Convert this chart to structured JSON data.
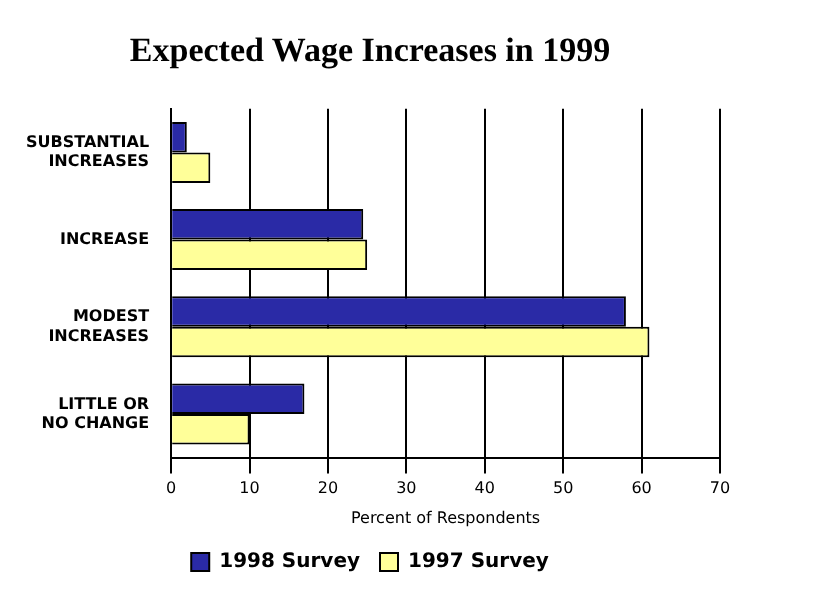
{
  "chart_data": {
    "type": "bar",
    "orientation": "horizontal",
    "title": "Expected Wage Increases in 1999",
    "xlabel": "Percent of Respondents",
    "categories": [
      "SUBSTANTIAL INCREASES",
      "INCREASE",
      "MODEST INCREASES",
      "LITTLE OR NO CHANGE"
    ],
    "series": [
      {
        "name": "1998 Survey",
        "color": "#2a2aa6",
        "values": [
          2,
          24.5,
          58,
          17
        ]
      },
      {
        "name": "1997 Survey",
        "color": "#ffff99",
        "values": [
          5,
          25,
          61,
          10
        ]
      }
    ],
    "xlim": [
      0,
      70
    ],
    "xticks": [
      0,
      10,
      20,
      30,
      40,
      50,
      60,
      70
    ],
    "grid": "x",
    "legend": "bottom"
  }
}
